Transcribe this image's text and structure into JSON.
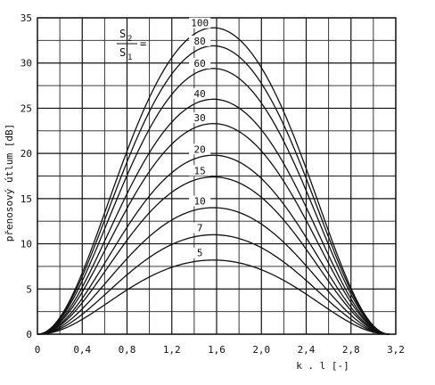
{
  "chart_data": {
    "type": "line",
    "title": "",
    "xlabel": "k . l   [-]",
    "ylabel": "přenosový útlum  [dB]",
    "xlim": [
      0,
      3.2
    ],
    "ylim": [
      0,
      35
    ],
    "x_ticks": [
      "0",
      "0,4",
      "0,8",
      "1,2",
      "1,6",
      "2,0",
      "2,4",
      "2,8",
      "3,2"
    ],
    "y_ticks": [
      "0",
      "5",
      "10",
      "15",
      "20",
      "25",
      "30",
      "35"
    ],
    "grid": true,
    "legend_title": {
      "numerator": "S",
      "numerator_sub": "2",
      "denominator": "S",
      "denominator_sub": "1",
      "equals": "="
    },
    "series": [
      {
        "name": "5",
        "peak": 8.2
      },
      {
        "name": "7",
        "peak": 11.0
      },
      {
        "name": "10",
        "peak": 14.0
      },
      {
        "name": "15",
        "peak": 17.4
      },
      {
        "name": "20",
        "peak": 19.8
      },
      {
        "name": "30",
        "peak": 23.3
      },
      {
        "name": "40",
        "peak": 26.0
      },
      {
        "name": "60",
        "peak": 29.4
      },
      {
        "name": "80",
        "peak": 31.9
      },
      {
        "name": "100",
        "peak": 33.9
      }
    ],
    "series_note": "values at x = 0 and x = 3.14 are 0 dB for every series; maximum at x = 1.57"
  }
}
